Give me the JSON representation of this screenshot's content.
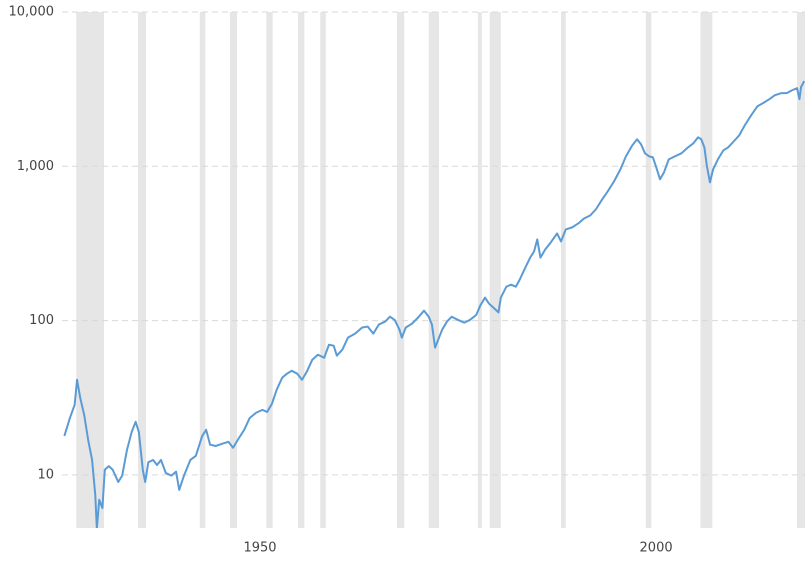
{
  "chart_data": {
    "type": "line",
    "log_y": true,
    "grid": true,
    "color": "#5b9bd5",
    "band_color": "#e6e6e6",
    "xlim": [
      1925.0,
      2018.8
    ],
    "ylim": [
      4.53,
      10000
    ],
    "xticks": [
      1950,
      2000
    ],
    "yticks": [
      10,
      100,
      {
        "value": 1000,
        "label": "1,000"
      },
      {
        "value": 10000,
        "label": "10,000"
      }
    ],
    "recessions": [
      [
        1926.8,
        1930.3
      ],
      [
        1934.6,
        1935.6
      ],
      [
        1942.4,
        1943.1
      ],
      [
        1946.2,
        1947.1
      ],
      [
        1950.8,
        1951.6
      ],
      [
        1954.8,
        1955.6
      ],
      [
        1957.6,
        1958.3
      ],
      [
        1967.3,
        1968.2
      ],
      [
        1971.3,
        1972.6
      ],
      [
        1977.5,
        1978.0
      ],
      [
        1979.0,
        1980.4
      ],
      [
        1988.0,
        1988.6
      ],
      [
        1998.7,
        1999.4
      ],
      [
        2005.6,
        2007.1
      ],
      [
        2017.8,
        2018.8
      ]
    ],
    "x": [
      1925.3,
      1926.0,
      1926.6,
      1926.9,
      1927.3,
      1927.8,
      1928.3,
      1928.8,
      1929.2,
      1929.4,
      1929.7,
      1930.1,
      1930.4,
      1930.9,
      1931.4,
      1932.1,
      1932.6,
      1933.2,
      1933.8,
      1934.3,
      1934.7,
      1935.2,
      1935.5,
      1935.9,
      1936.5,
      1937.0,
      1937.5,
      1938.1,
      1938.8,
      1939.4,
      1939.8,
      1940.4,
      1941.2,
      1941.9,
      1942.7,
      1943.2,
      1943.7,
      1944.4,
      1945.2,
      1946.0,
      1946.6,
      1947.2,
      1948.0,
      1948.7,
      1949.5,
      1950.3,
      1950.9,
      1951.5,
      1952.1,
      1952.8,
      1953.4,
      1954.0,
      1954.7,
      1955.3,
      1955.9,
      1956.6,
      1957.3,
      1958.1,
      1958.7,
      1959.3,
      1959.7,
      1960.4,
      1961.1,
      1962.0,
      1962.9,
      1963.6,
      1964.3,
      1965.0,
      1965.8,
      1966.4,
      1967.0,
      1967.6,
      1967.9,
      1968.4,
      1969.2,
      1969.9,
      1970.7,
      1971.3,
      1971.7,
      1972.1,
      1972.5,
      1973.0,
      1973.6,
      1974.2,
      1975.0,
      1975.8,
      1976.5,
      1977.3,
      1977.8,
      1978.4,
      1978.9,
      1979.5,
      1980.1,
      1980.4,
      1981.1,
      1981.7,
      1982.3,
      1982.8,
      1983.5,
      1984.1,
      1984.6,
      1985.0,
      1985.4,
      1986.0,
      1986.7,
      1987.5,
      1988.0,
      1988.6,
      1989.4,
      1990.2,
      1990.9,
      1991.7,
      1992.4,
      1993.2,
      1993.9,
      1994.7,
      1995.5,
      1996.2,
      1997.0,
      1997.6,
      1998.1,
      1998.6,
      1999.1,
      1999.6,
      2000.1,
      2000.5,
      2001.0,
      2001.6,
      2002.4,
      2003.2,
      2003.9,
      2004.7,
      2005.3,
      2005.7,
      2006.1,
      2006.4,
      2006.8,
      2007.2,
      2007.8,
      2008.5,
      2009.1,
      2009.7,
      2010.5,
      2011.2,
      2012.0,
      2012.8,
      2013.5,
      2014.3,
      2015.0,
      2015.8,
      2016.5,
      2017.2,
      2017.8,
      2018.1,
      2018.3,
      2018.7
    ],
    "values": [
      17.9,
      23.4,
      28.5,
      41.4,
      31.6,
      24.5,
      16.9,
      12.5,
      7.4,
      4.5,
      6.9,
      6.1,
      10.8,
      11.4,
      10.8,
      9.0,
      9.9,
      14.5,
      19.0,
      22.1,
      19.0,
      10.8,
      9.0,
      12.1,
      12.5,
      11.6,
      12.5,
      10.3,
      9.9,
      10.5,
      8.0,
      9.9,
      12.5,
      13.3,
      17.9,
      19.6,
      15.7,
      15.4,
      15.9,
      16.4,
      15.0,
      16.9,
      19.6,
      23.4,
      25.3,
      26.4,
      25.6,
      28.9,
      35.6,
      42.7,
      45.3,
      47.3,
      45.3,
      41.4,
      46.6,
      55.8,
      60.1,
      57.5,
      69.8,
      68.8,
      59.3,
      64.9,
      77.6,
      82.4,
      90.2,
      91.5,
      82.4,
      94.3,
      98.6,
      106,
      101,
      87.5,
      77.6,
      90.2,
      95.7,
      104,
      116,
      106,
      94.3,
      66.8,
      75.3,
      87.5,
      98.6,
      106,
      101,
      97.0,
      101,
      109,
      125,
      141,
      129,
      121,
      113,
      141,
      166,
      171,
      166,
      185,
      221,
      256,
      281,
      336,
      256,
      289,
      321,
      367,
      326,
      390,
      402,
      427,
      459,
      481,
      526,
      611,
      689,
      800,
      957,
      1162,
      1368,
      1497,
      1390,
      1214,
      1162,
      1143,
      957,
      824,
      914,
      1109,
      1162,
      1214,
      1309,
      1409,
      1542,
      1497,
      1327,
      1014,
      787,
      957,
      1109,
      1270,
      1327,
      1432,
      1589,
      1845,
      2141,
      2452,
      2567,
      2723,
      2891,
      2978,
      2978,
      3117,
      3208,
      2723,
      3259,
      3565
    ]
  }
}
